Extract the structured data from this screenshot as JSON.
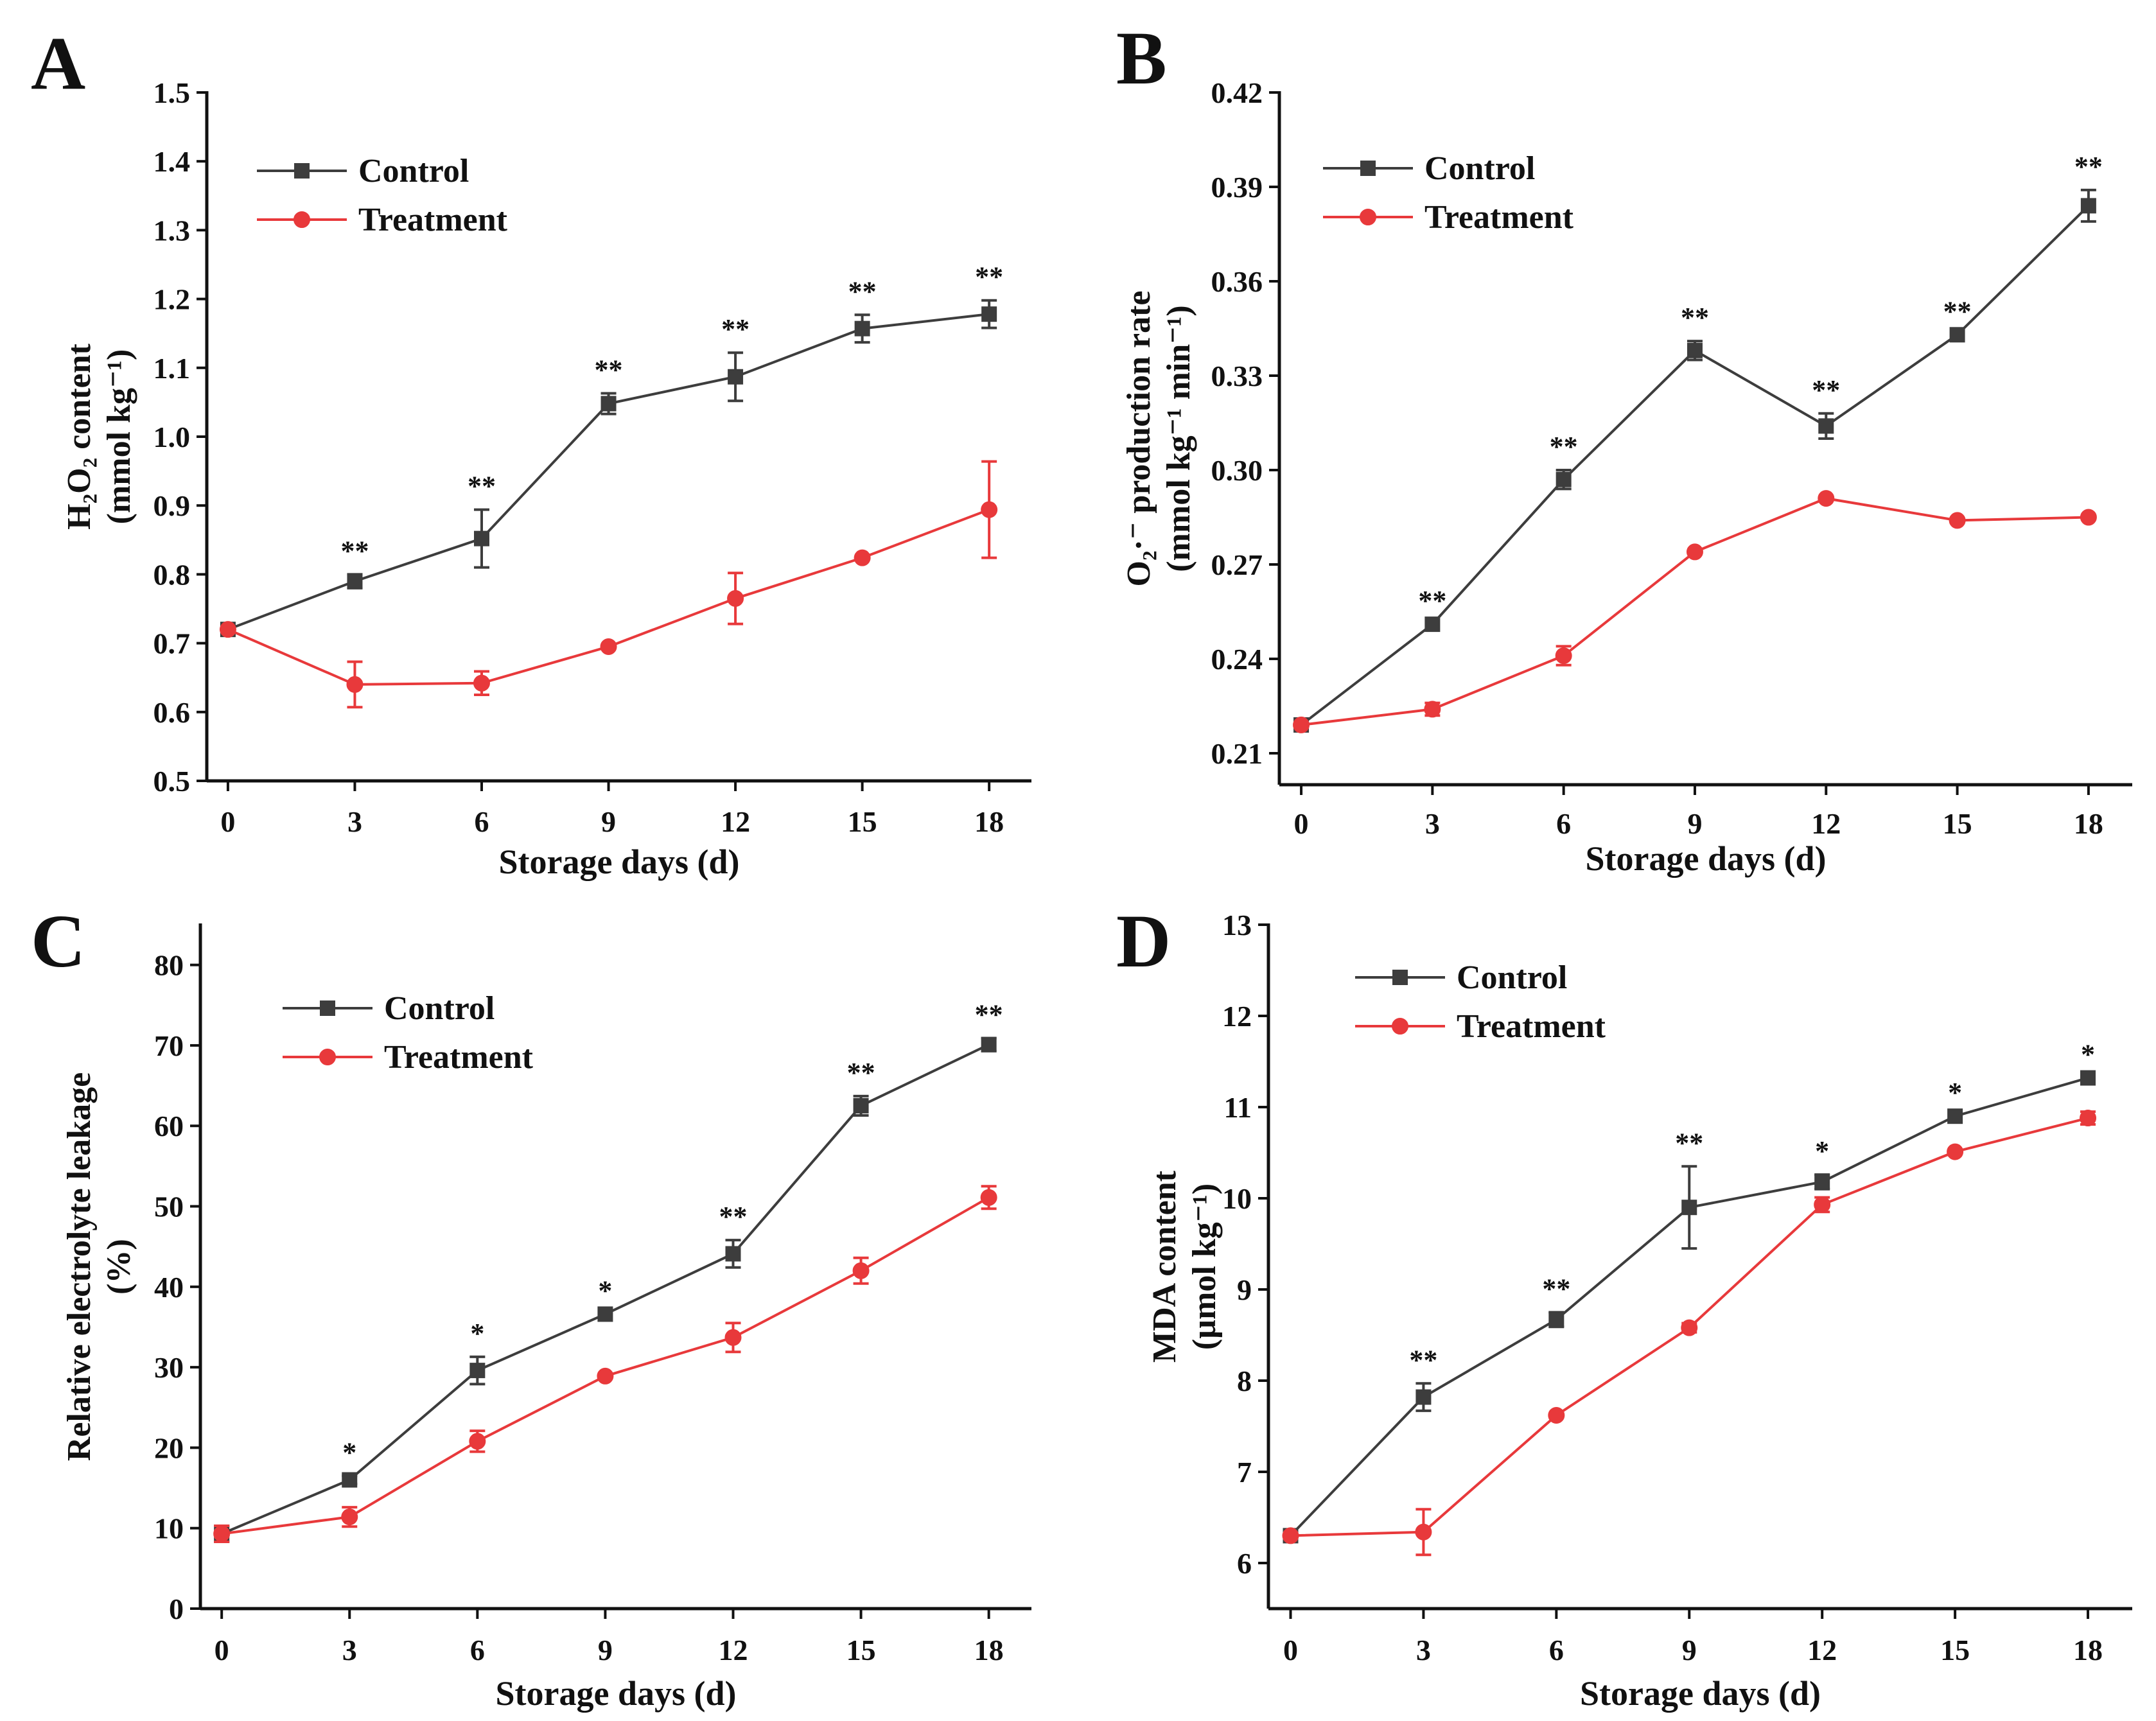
{
  "legend": {
    "control": "Control",
    "treatment": "Treatment"
  },
  "colors": {
    "control": "#3d3d3d",
    "treatment": "#e8393b"
  },
  "chart_data": [
    {
      "panel": "A",
      "type": "line",
      "xlabel": "Storage days (d)",
      "ylabel_line1": "H₂O₂ content",
      "ylabel_line2": "(mmol kg⁻¹)",
      "x": [
        0,
        3,
        6,
        9,
        12,
        15,
        18
      ],
      "xlim": [
        -0.5,
        19
      ],
      "ylim": [
        0.5,
        1.5
      ],
      "yticks": [
        0.5,
        0.6,
        0.7,
        0.8,
        0.9,
        1.0,
        1.1,
        1.2,
        1.3,
        1.4,
        1.5
      ],
      "ytick_labels": [
        "0.5",
        "0.6",
        "0.7",
        "0.8",
        "0.9",
        "1.0",
        "1.1",
        "1.2",
        "1.3",
        "1.4",
        "1.5"
      ],
      "series": [
        {
          "name": "Control",
          "values": [
            0.72,
            0.79,
            0.852,
            1.048,
            1.087,
            1.157,
            1.178
          ],
          "errors": [
            0.0,
            0.01,
            0.042,
            0.015,
            0.035,
            0.02,
            0.02
          ]
        },
        {
          "name": "Treatment",
          "values": [
            0.72,
            0.64,
            0.642,
            0.695,
            0.765,
            0.824,
            0.894
          ],
          "errors": [
            0.0,
            0.033,
            0.017,
            0.0,
            0.037,
            0.0,
            0.07
          ]
        }
      ],
      "significance": [
        "",
        "**",
        "**",
        "**",
        "**",
        "**",
        "**"
      ]
    },
    {
      "panel": "B",
      "type": "line",
      "xlabel": "Storage days (d)",
      "ylabel_line1": "O₂·⁻ production rate",
      "ylabel_line2": "(mmol kg⁻¹ min⁻¹)",
      "x": [
        0,
        3,
        6,
        9,
        12,
        15,
        18
      ],
      "xlim": [
        -0.5,
        19
      ],
      "ylim": [
        0.2,
        0.42
      ],
      "yticks": [
        0.21,
        0.24,
        0.27,
        0.3,
        0.33,
        0.36,
        0.39,
        0.42
      ],
      "ytick_labels": [
        "0.21",
        "0.24",
        "0.27",
        "0.30",
        "0.33",
        "0.36",
        "0.39",
        "0.42"
      ],
      "series": [
        {
          "name": "Control",
          "values": [
            0.219,
            0.251,
            0.297,
            0.338,
            0.314,
            0.343,
            0.384
          ],
          "errors": [
            0.0,
            0.0,
            0.003,
            0.003,
            0.004,
            0.0,
            0.005
          ]
        },
        {
          "name": "Treatment",
          "values": [
            0.219,
            0.224,
            0.241,
            0.274,
            0.291,
            0.284,
            0.285
          ],
          "errors": [
            0.0,
            0.002,
            0.003,
            0.0,
            0.0,
            0.0,
            0.0
          ]
        }
      ],
      "significance": [
        "",
        "**",
        "**",
        "**",
        "**",
        "**",
        "**"
      ]
    },
    {
      "panel": "C",
      "type": "line",
      "xlabel": "Storage days (d)",
      "ylabel_line1": "Relative electrolyte leakage",
      "ylabel_line2": "(%)",
      "x": [
        0,
        3,
        6,
        9,
        12,
        15,
        18
      ],
      "xlim": [
        -0.5,
        19
      ],
      "ylim": [
        0,
        85
      ],
      "yticks": [
        0,
        10,
        20,
        30,
        40,
        50,
        60,
        70,
        80
      ],
      "ytick_labels": [
        "0",
        "10",
        "20",
        "30",
        "40",
        "50",
        "60",
        "70",
        "80"
      ],
      "series": [
        {
          "name": "Control",
          "values": [
            9.3,
            16.0,
            29.6,
            36.6,
            44.1,
            62.5,
            70.1
          ],
          "errors": [
            1.0,
            0.5,
            1.7,
            0.0,
            1.7,
            1.2,
            0.8
          ]
        },
        {
          "name": "Treatment",
          "values": [
            9.3,
            11.4,
            20.8,
            28.9,
            33.7,
            42.0,
            51.1
          ],
          "errors": [
            1.0,
            1.2,
            1.3,
            0.0,
            1.8,
            1.6,
            1.4
          ]
        }
      ],
      "significance": [
        "",
        "*",
        "*",
        "*",
        "**",
        "**",
        "**"
      ]
    },
    {
      "panel": "D",
      "type": "line",
      "xlabel": "Storage days (d)",
      "ylabel_line1": "MDA content",
      "ylabel_line2": "(µmol kg⁻¹)",
      "x": [
        0,
        3,
        6,
        9,
        12,
        15,
        18
      ],
      "xlim": [
        -0.5,
        19
      ],
      "ylim": [
        5.5,
        13
      ],
      "yticks": [
        6,
        7,
        8,
        9,
        10,
        11,
        12,
        13
      ],
      "ytick_labels": [
        "6",
        "7",
        "8",
        "9",
        "10",
        "11",
        "12",
        "13"
      ],
      "series": [
        {
          "name": "Control",
          "values": [
            6.3,
            7.82,
            8.67,
            9.9,
            10.18,
            10.9,
            11.32
          ],
          "errors": [
            0.0,
            0.15,
            0.08,
            0.45,
            0.08,
            0.0,
            0.0
          ]
        },
        {
          "name": "Treatment",
          "values": [
            6.3,
            6.34,
            7.62,
            8.58,
            9.93,
            10.51,
            10.88
          ],
          "errors": [
            0.0,
            0.25,
            0.0,
            0.05,
            0.08,
            0.0,
            0.07
          ]
        }
      ],
      "significance": [
        "",
        "**",
        "**",
        "**",
        "*",
        "*",
        "*"
      ]
    }
  ]
}
